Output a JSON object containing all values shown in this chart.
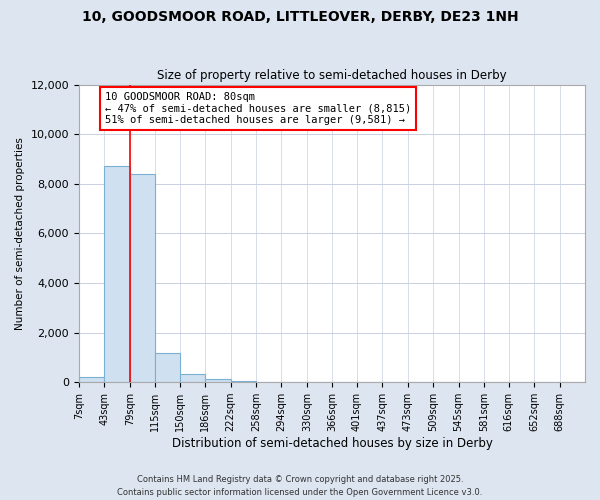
{
  "title_line1": "10, GOODSMOOR ROAD, LITTLEOVER, DERBY, DE23 1NH",
  "title_line2": "Size of property relative to semi-detached houses in Derby",
  "xlabel": "Distribution of semi-detached houses by size in Derby",
  "ylabel": "Number of semi-detached properties",
  "footnote": "Contains HM Land Registry data © Crown copyright and database right 2025.\nContains public sector information licensed under the Open Government Licence v3.0.",
  "bin_edges": [
    7,
    43,
    79,
    115,
    150,
    186,
    222,
    258,
    294,
    330,
    366,
    401,
    437,
    473,
    509,
    545,
    581,
    616,
    652,
    688,
    724
  ],
  "bar_heights": [
    200,
    8700,
    8400,
    1180,
    350,
    130,
    60,
    0,
    0,
    0,
    0,
    0,
    0,
    0,
    0,
    0,
    0,
    0,
    0,
    0
  ],
  "bar_color": "#cfe0f0",
  "bar_edge_color": "#7ab0d4",
  "vline_x": 79,
  "annotation_text": "10 GOODSMOOR ROAD: 80sqm\n← 47% of semi-detached houses are smaller (8,815)\n51% of semi-detached houses are larger (9,581) →",
  "ylim": [
    0,
    12000
  ],
  "yticks": [
    0,
    2000,
    4000,
    6000,
    8000,
    10000,
    12000
  ],
  "background_color": "#dde5f0",
  "plot_background": "#ffffff",
  "grid_color": "#c8d0e0"
}
